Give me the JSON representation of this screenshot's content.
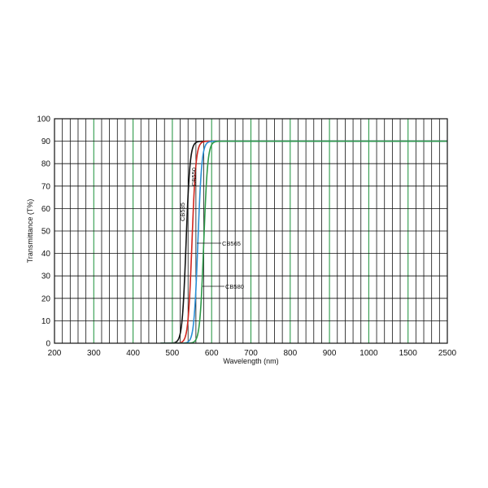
{
  "chart_data": {
    "type": "line",
    "xlabel": "Wavelength (nm)",
    "ylabel": "Transmittance (T%)",
    "x_ticks": [
      "200",
      "300",
      "400",
      "500",
      "600",
      "700",
      "800",
      "900",
      "1000",
      "1500",
      "2500"
    ],
    "y_ticks": [
      "0",
      "10",
      "20",
      "30",
      "40",
      "50",
      "60",
      "70",
      "80",
      "90",
      "100"
    ],
    "ylim": [
      0,
      100
    ],
    "xlim_label": [
      "200",
      "2500"
    ],
    "grid": true,
    "colors": {
      "grid": "#111111",
      "grid_major": "#2e9a4a",
      "frame": "#111111"
    },
    "series": [
      {
        "name": "CB535",
        "color": "#111111",
        "cutoff": 535,
        "plateau": 90
      },
      {
        "name": "CB550",
        "color": "#d2261e",
        "cutoff": 550,
        "plateau": 90
      },
      {
        "name": "CB565",
        "color": "#2a8fd6",
        "cutoff": 565,
        "plateau": 90
      },
      {
        "name": "CB580",
        "color": "#2e9a4a",
        "cutoff": 580,
        "plateau": 90
      }
    ]
  }
}
